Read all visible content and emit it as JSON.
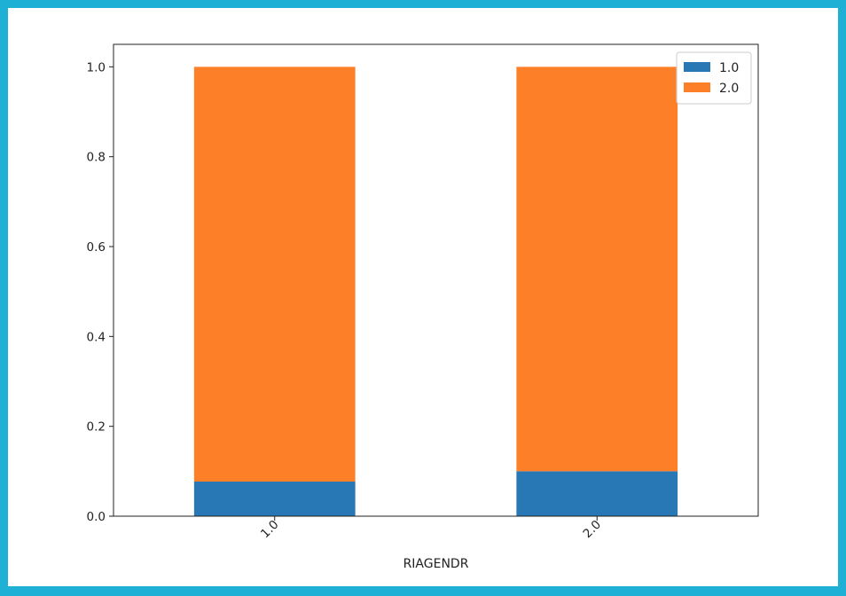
{
  "colors": {
    "frame": "#1fb0d6",
    "background": "#ffffff",
    "axis": "#222222"
  },
  "chart_data": {
    "type": "bar",
    "stacked": true,
    "title": "",
    "xlabel": "RIAGENDR",
    "ylabel": "",
    "categories": [
      "1.0",
      "2.0"
    ],
    "ylim": [
      0,
      1.05
    ],
    "yticks": [
      0.0,
      0.2,
      0.4,
      0.6,
      0.8,
      1.0
    ],
    "ytick_labels": [
      "0.0",
      "0.2",
      "0.4",
      "0.6",
      "0.8",
      "1.0"
    ],
    "xtick_rotation": 45,
    "grid": false,
    "legend_position": "top-right",
    "series": [
      {
        "name": "1.0",
        "color": "#2878b5",
        "values": [
          0.077,
          0.1
        ]
      },
      {
        "name": "2.0",
        "color": "#fd7f28",
        "values": [
          0.923,
          0.9
        ]
      }
    ]
  }
}
